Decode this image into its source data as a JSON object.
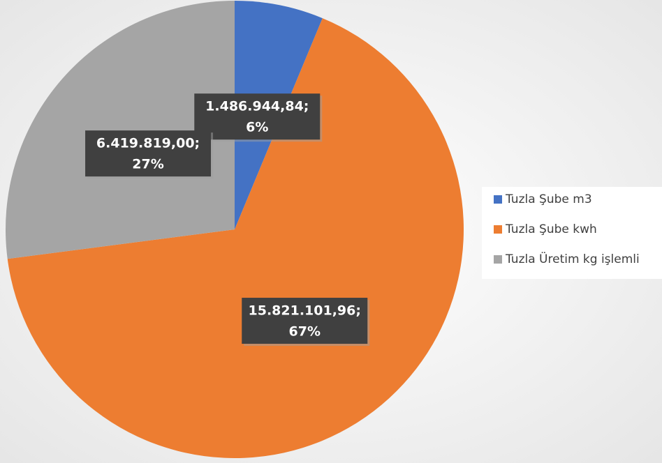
{
  "chart_data": {
    "type": "pie",
    "categories": [
      "Tuzla Şube m3",
      "Tuzla Şube kwh",
      "Tuzla Üretim kg işlemli"
    ],
    "values": [
      1486944.84,
      15821101.96,
      6419819.0
    ],
    "value_labels": [
      "1.486.944,84;",
      "15.821.101,96;",
      "6.419.819,00;"
    ],
    "percents": [
      6,
      67,
      27
    ],
    "percent_labels": [
      "6%",
      "67%",
      "27%"
    ],
    "colors": [
      "#4472c4",
      "#ed7d31",
      "#a5a5a5"
    ],
    "legend": "right"
  }
}
